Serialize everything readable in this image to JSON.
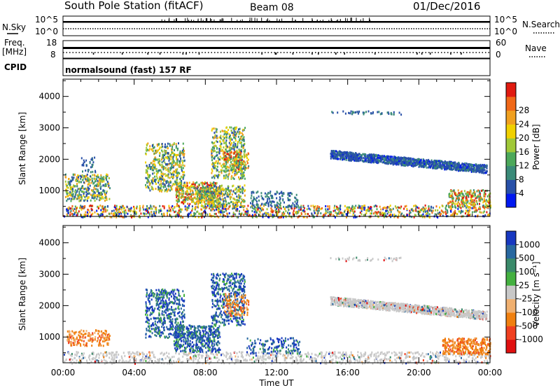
{
  "header": {
    "station": "South Pole Station (fitACF)",
    "beam": "Beam 08",
    "date": "01/Dec/2016"
  },
  "top_panels": {
    "nsky_label": "N.Sky",
    "nsky_ticks": [
      "10^5",
      "10^0"
    ],
    "nsearch_label": "N.Search",
    "nsearch_ticks": [
      "10^5",
      "10^0"
    ],
    "freq_label": "Freq.",
    "freq_unit": "[MHz]",
    "freq_ticks": [
      "18",
      "8"
    ],
    "nave_label": "Nave",
    "nave_ticks": [
      "60",
      "0"
    ],
    "cpid_label": "CPID",
    "cpid_text": "normalsound (fast) 157 RF"
  },
  "chart_data": [
    {
      "type": "heatmap",
      "name": "power",
      "ylabel": "Slant Range [km]",
      "xlabel": "",
      "ylim": [
        180,
        4550
      ],
      "xlim": [
        0,
        24
      ],
      "yticks": [
        1000,
        2000,
        3000,
        4000
      ],
      "colorbar_label": "Power [dB]",
      "colorbar_ticks": [
        "4",
        "8",
        "12",
        "16",
        "20",
        "24",
        "28"
      ],
      "colorbar_colors": [
        "#0018f0",
        "#2850a8",
        "#3a8a78",
        "#4ca85a",
        "#a0c838",
        "#f0d000",
        "#f0a020",
        "#f06818",
        "#e01a10"
      ],
      "regions": [
        {
          "t0": 0.0,
          "t1": 24.0,
          "r0": 180,
          "r1": 560,
          "level": "mixed",
          "density": 0.45
        },
        {
          "t0": 0.1,
          "t1": 2.6,
          "r0": 700,
          "r1": 1550,
          "level": "mid",
          "density": 0.6
        },
        {
          "t0": 1.0,
          "t1": 1.8,
          "r0": 1600,
          "r1": 2100,
          "level": "low",
          "density": 0.3
        },
        {
          "t0": 4.6,
          "t1": 6.8,
          "r0": 1000,
          "r1": 2550,
          "level": "mid",
          "density": 0.5
        },
        {
          "t0": 6.3,
          "t1": 8.8,
          "r0": 600,
          "r1": 1300,
          "level": "high",
          "density": 0.8
        },
        {
          "t0": 8.3,
          "t1": 10.2,
          "r0": 1400,
          "r1": 3050,
          "level": "mid",
          "density": 0.5
        },
        {
          "t0": 9.0,
          "t1": 10.4,
          "r0": 1700,
          "r1": 2300,
          "level": "high",
          "density": 0.55
        },
        {
          "t0": 7.5,
          "t1": 10.2,
          "r0": 500,
          "r1": 1200,
          "level": "mid",
          "density": 0.6
        },
        {
          "t0": 10.5,
          "t1": 13.2,
          "r0": 500,
          "r1": 1000,
          "level": "low",
          "density": 0.35
        },
        {
          "t0": 15.0,
          "t1": 23.8,
          "r0": 1650,
          "r1": 2350,
          "level": "band",
          "density": 0.75
        },
        {
          "t0": 21.6,
          "t1": 24.0,
          "r0": 480,
          "r1": 1050,
          "level": "high",
          "density": 0.7
        },
        {
          "t0": 15.0,
          "t1": 19.0,
          "r0": 3450,
          "r1": 3560,
          "level": "low",
          "density": 0.35
        }
      ]
    },
    {
      "type": "heatmap",
      "name": "velocity",
      "ylabel": "Slant Range [km]",
      "xlabel": "Time UT",
      "ylim": [
        180,
        4550
      ],
      "xlim": [
        0,
        24
      ],
      "xticks": [
        "00:00",
        "04:00",
        "08:00",
        "12:00",
        "16:00",
        "20:00",
        "00:00"
      ],
      "yticks": [
        1000,
        2000,
        3000,
        4000
      ],
      "colorbar_label": "Velocity [m s⁻¹]",
      "colorbar_ticks": [
        "1000",
        "500",
        "100",
        "25",
        "-25",
        "-100",
        "-500",
        "-1000"
      ],
      "colorbar_colors": [
        "#1838c0",
        "#2868a0",
        "#3a8a6a",
        "#44b040",
        "#c8c8c8",
        "#f0b070",
        "#f08010",
        "#f04020",
        "#e01010"
      ],
      "regions": [
        {
          "t0": 0.0,
          "t1": 24.0,
          "r0": 180,
          "r1": 560,
          "level": "gray",
          "density": 0.35
        },
        {
          "t0": 0.2,
          "t1": 2.6,
          "r0": 750,
          "r1": 1250,
          "level": "neg",
          "density": 0.55
        },
        {
          "t0": 4.6,
          "t1": 6.8,
          "r0": 1000,
          "r1": 2550,
          "level": "pos",
          "density": 0.5
        },
        {
          "t0": 6.2,
          "t1": 8.8,
          "r0": 550,
          "r1": 1400,
          "level": "pos",
          "density": 0.75
        },
        {
          "t0": 8.3,
          "t1": 10.2,
          "r0": 1400,
          "r1": 3050,
          "level": "pos",
          "density": 0.5
        },
        {
          "t0": 9.0,
          "t1": 10.4,
          "r0": 1700,
          "r1": 2400,
          "level": "neg",
          "density": 0.4
        },
        {
          "t0": 10.3,
          "t1": 13.3,
          "r0": 500,
          "r1": 1000,
          "level": "pos",
          "density": 0.35
        },
        {
          "t0": 15.0,
          "t1": 23.8,
          "r0": 1650,
          "r1": 2350,
          "level": "gray",
          "density": 0.7
        },
        {
          "t0": 21.3,
          "t1": 24.0,
          "r0": 480,
          "r1": 1000,
          "level": "negstrong",
          "density": 0.8
        },
        {
          "t0": 15.0,
          "t1": 19.0,
          "r0": 3450,
          "r1": 3560,
          "level": "gray",
          "density": 0.3
        }
      ]
    }
  ]
}
